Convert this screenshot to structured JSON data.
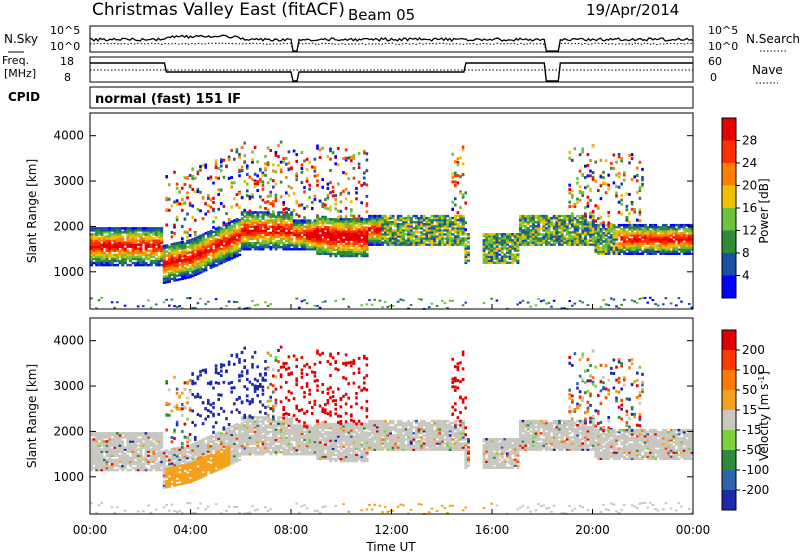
{
  "header": {
    "title": "Christmas Valley East (fitACF)",
    "beam": "Beam 05",
    "date": "19/Apr/2014"
  },
  "nsky_panel": {
    "label": "N.Sky",
    "tick_top": "10^5",
    "tick_bottom": "10^0",
    "right_tick_top": "10^5",
    "right_tick_bottom": "10^0",
    "right_label": "N.Search"
  },
  "freq_panel": {
    "label_line1": "Freq.",
    "label_line2": "[MHz]",
    "tick_top": "18",
    "tick_bottom": "8",
    "right_tick_top": "60",
    "right_tick_bottom": "0",
    "right_label": "Nave"
  },
  "cpid": {
    "label": "CPID",
    "value": "normal (fast) 151 IF"
  },
  "time_axis": {
    "title": "Time UT",
    "ticks": [
      "00:00",
      "04:00",
      "08:00",
      "12:00",
      "16:00",
      "20:00",
      "00:00"
    ]
  },
  "chart_data": [
    {
      "type": "heatmap",
      "name": "power",
      "ylabel": "Slant Range [km]",
      "yticks": [
        "1000",
        "2000",
        "3000",
        "4000"
      ],
      "xlim": [
        0,
        24
      ],
      "ylim": [
        180,
        4500
      ],
      "colorbar": {
        "label": "Power [dB]",
        "ticks": [
          "4",
          "8",
          "12",
          "16",
          "20",
          "24",
          "28"
        ],
        "colors": [
          "#0000ff",
          "#1a4fa6",
          "#2f8a3a",
          "#6cc23a",
          "#f0c000",
          "#ff8000",
          "#ff3000",
          "#e60000"
        ]
      }
    },
    {
      "type": "heatmap",
      "name": "velocity",
      "ylabel": "Slant Range [km]",
      "yticks": [
        "1000",
        "2000",
        "3000",
        "4000"
      ],
      "xlim": [
        0,
        24
      ],
      "ylim": [
        180,
        4500
      ],
      "colorbar": {
        "label_main": "Velocity [m s",
        "label_sup": "-1",
        "label_end": "]",
        "ticks": [
          "200",
          "100",
          "50",
          "15",
          "-15",
          "-50",
          "-100",
          "-200"
        ],
        "colors": [
          "#1c2aa8",
          "#2e63b0",
          "#2e8b3c",
          "#7cd23c",
          "#c8c8c0",
          "#f4a21e",
          "#ff7a00",
          "#ff3a00",
          "#e00000"
        ]
      }
    }
  ]
}
